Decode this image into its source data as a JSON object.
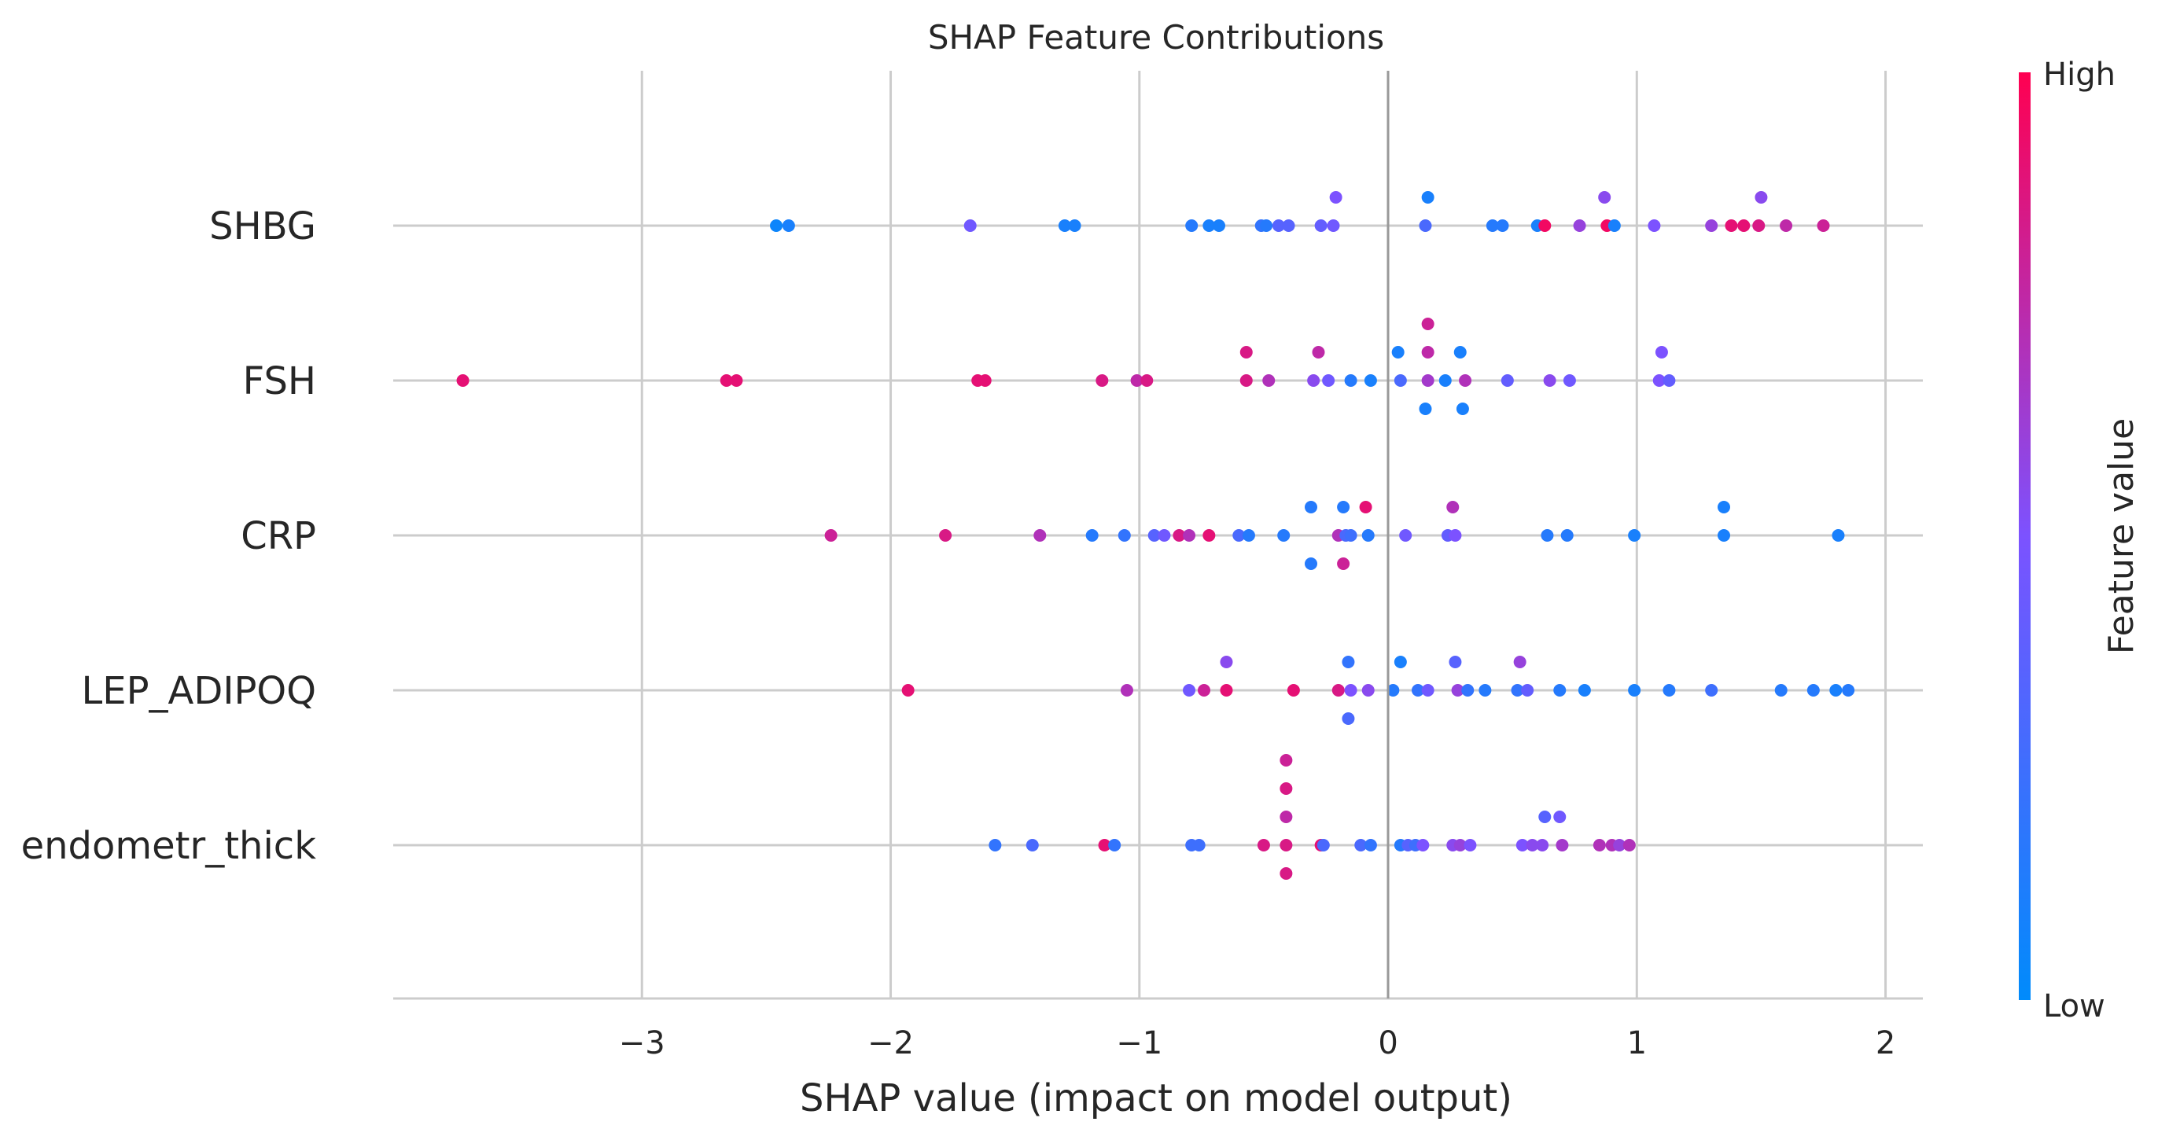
{
  "chart_data": {
    "type": "scatter",
    "title": "SHAP Feature Contributions",
    "xlabel": "SHAP value (impact on model output)",
    "xlim": [
      -4.0,
      2.15
    ],
    "xticks": [
      -3,
      -2,
      -1,
      0,
      1,
      2
    ],
    "xtick_labels": [
      "−3",
      "−2",
      "−1",
      "0",
      "1",
      "2"
    ],
    "grid": true,
    "features": [
      "SHBG",
      "FSH",
      "CRP",
      "LEP_ADIPOQ",
      "endometr_thick"
    ],
    "colorbar": {
      "label": "Feature value",
      "high_label": "High",
      "low_label": "Low",
      "low_color": "#008bfb",
      "mid_color": "#7c52ff",
      "high_color": "#ff0051"
    },
    "series": [
      {
        "feature": "SHBG",
        "points": [
          [
            -2.46,
            0,
            0.05
          ],
          [
            -2.41,
            0,
            0.1
          ],
          [
            -1.68,
            0,
            0.45
          ],
          [
            -1.3,
            0,
            0.1
          ],
          [
            -1.26,
            0,
            0.1
          ],
          [
            -0.79,
            0,
            0.15
          ],
          [
            -0.72,
            0,
            0.1
          ],
          [
            -0.68,
            0,
            0.1
          ],
          [
            -0.51,
            0,
            0.2
          ],
          [
            -0.49,
            0,
            0.15
          ],
          [
            -0.44,
            0,
            0.35
          ],
          [
            -0.4,
            0,
            0.35
          ],
          [
            -0.27,
            0,
            0.4
          ],
          [
            -0.22,
            0,
            0.45
          ],
          [
            -0.21,
            1,
            0.5
          ],
          [
            0.15,
            0,
            0.3
          ],
          [
            0.16,
            1,
            0.1
          ],
          [
            0.42,
            0,
            0.15
          ],
          [
            0.46,
            0,
            0.15
          ],
          [
            0.6,
            0,
            0.1
          ],
          [
            0.63,
            0,
            0.95
          ],
          [
            0.77,
            0,
            0.6
          ],
          [
            0.87,
            1,
            0.55
          ],
          [
            0.88,
            0,
            0.95
          ],
          [
            0.91,
            0,
            0.1
          ],
          [
            1.07,
            0,
            0.5
          ],
          [
            1.3,
            0,
            0.6
          ],
          [
            1.38,
            0,
            0.9
          ],
          [
            1.43,
            0,
            0.9
          ],
          [
            1.49,
            0,
            0.85
          ],
          [
            1.5,
            1,
            0.55
          ],
          [
            1.6,
            0,
            0.75
          ],
          [
            1.75,
            0,
            0.8
          ]
        ]
      },
      {
        "feature": "FSH",
        "points": [
          [
            -3.72,
            0,
            0.9
          ],
          [
            -2.66,
            0,
            0.9
          ],
          [
            -2.62,
            0,
            0.9
          ],
          [
            -1.65,
            0,
            0.9
          ],
          [
            -1.62,
            0,
            0.9
          ],
          [
            -1.15,
            0,
            0.85
          ],
          [
            -1.01,
            0,
            0.75
          ],
          [
            -0.97,
            0,
            0.85
          ],
          [
            -0.57,
            1,
            0.85
          ],
          [
            -0.57,
            0,
            0.85
          ],
          [
            -0.48,
            0,
            0.7
          ],
          [
            -0.3,
            0,
            0.55
          ],
          [
            -0.28,
            1,
            0.75
          ],
          [
            -0.24,
            0,
            0.45
          ],
          [
            -0.15,
            0,
            0.15
          ],
          [
            -0.07,
            0,
            0.1
          ],
          [
            0.04,
            1,
            0.1
          ],
          [
            0.05,
            0,
            0.3
          ],
          [
            0.16,
            2,
            0.8
          ],
          [
            0.16,
            1,
            0.75
          ],
          [
            0.16,
            0,
            0.65
          ],
          [
            0.15,
            -1,
            0.1
          ],
          [
            0.23,
            0,
            0.1
          ],
          [
            0.29,
            1,
            0.1
          ],
          [
            0.31,
            0,
            0.7
          ],
          [
            0.3,
            -1,
            0.1
          ],
          [
            0.48,
            0,
            0.4
          ],
          [
            0.65,
            0,
            0.55
          ],
          [
            0.73,
            0,
            0.45
          ],
          [
            1.1,
            1,
            0.5
          ],
          [
            1.09,
            0,
            0.5
          ],
          [
            1.13,
            0,
            0.4
          ]
        ]
      },
      {
        "feature": "CRP",
        "points": [
          [
            -2.24,
            0,
            0.8
          ],
          [
            -1.78,
            0,
            0.85
          ],
          [
            -1.4,
            0,
            0.7
          ],
          [
            -1.19,
            0,
            0.15
          ],
          [
            -1.06,
            0,
            0.2
          ],
          [
            -0.94,
            0,
            0.35
          ],
          [
            -0.9,
            0,
            0.45
          ],
          [
            -0.84,
            0,
            0.85
          ],
          [
            -0.8,
            0,
            0.7
          ],
          [
            -0.72,
            0,
            0.9
          ],
          [
            -0.6,
            0,
            0.3
          ],
          [
            -0.56,
            0,
            0.15
          ],
          [
            -0.42,
            0,
            0.15
          ],
          [
            -0.31,
            1,
            0.15
          ],
          [
            -0.31,
            -1,
            0.15
          ],
          [
            -0.2,
            0,
            0.7
          ],
          [
            -0.18,
            1,
            0.15
          ],
          [
            -0.17,
            0,
            0.3
          ],
          [
            -0.15,
            0,
            0.25
          ],
          [
            -0.18,
            -1,
            0.8
          ],
          [
            -0.09,
            1,
            0.9
          ],
          [
            -0.08,
            0,
            0.15
          ],
          [
            0.07,
            0,
            0.45
          ],
          [
            0.24,
            0,
            0.4
          ],
          [
            0.26,
            1,
            0.7
          ],
          [
            0.27,
            0,
            0.5
          ],
          [
            0.64,
            0,
            0.15
          ],
          [
            0.72,
            0,
            0.15
          ],
          [
            0.99,
            0,
            0.1
          ],
          [
            1.35,
            1,
            0.1
          ],
          [
            1.35,
            0,
            0.1
          ],
          [
            1.81,
            0,
            0.1
          ]
        ]
      },
      {
        "feature": "LEP_ADIPOQ",
        "points": [
          [
            -1.93,
            0,
            0.9
          ],
          [
            -1.05,
            0,
            0.7
          ],
          [
            -0.8,
            0,
            0.45
          ],
          [
            -0.74,
            0,
            0.8
          ],
          [
            -0.65,
            1,
            0.55
          ],
          [
            -0.65,
            0,
            0.9
          ],
          [
            -0.38,
            0,
            0.9
          ],
          [
            -0.2,
            0,
            0.85
          ],
          [
            -0.16,
            1,
            0.2
          ],
          [
            -0.15,
            0,
            0.5
          ],
          [
            -0.16,
            -1,
            0.3
          ],
          [
            -0.08,
            0,
            0.55
          ],
          [
            0.02,
            0,
            0.15
          ],
          [
            0.05,
            1,
            0.1
          ],
          [
            0.12,
            0,
            0.2
          ],
          [
            0.16,
            0,
            0.45
          ],
          [
            0.27,
            1,
            0.35
          ],
          [
            0.28,
            0,
            0.6
          ],
          [
            0.32,
            0,
            0.2
          ],
          [
            0.39,
            0,
            0.15
          ],
          [
            0.52,
            0,
            0.2
          ],
          [
            0.53,
            1,
            0.6
          ],
          [
            0.56,
            0,
            0.4
          ],
          [
            0.69,
            0,
            0.15
          ],
          [
            0.79,
            0,
            0.1
          ],
          [
            0.99,
            0,
            0.1
          ],
          [
            1.13,
            0,
            0.15
          ],
          [
            1.3,
            0,
            0.25
          ],
          [
            1.58,
            0,
            0.15
          ],
          [
            1.71,
            0,
            0.15
          ],
          [
            1.8,
            0,
            0.1
          ],
          [
            1.85,
            0,
            0.15
          ]
        ]
      },
      {
        "feature": "endometr_thick",
        "points": [
          [
            -1.58,
            0,
            0.2
          ],
          [
            -1.43,
            0,
            0.3
          ],
          [
            -1.14,
            0,
            0.9
          ],
          [
            -1.1,
            0,
            0.2
          ],
          [
            -0.79,
            0,
            0.25
          ],
          [
            -0.76,
            0,
            0.25
          ],
          [
            -0.5,
            0,
            0.85
          ],
          [
            -0.41,
            3,
            0.8
          ],
          [
            -0.41,
            2,
            0.85
          ],
          [
            -0.41,
            1,
            0.75
          ],
          [
            -0.41,
            0,
            0.85
          ],
          [
            -0.41,
            -1,
            0.85
          ],
          [
            -0.27,
            0,
            0.9
          ],
          [
            -0.26,
            0,
            0.3
          ],
          [
            -0.11,
            0,
            0.3
          ],
          [
            -0.07,
            0,
            0.2
          ],
          [
            0.05,
            0,
            0.15
          ],
          [
            0.08,
            0,
            0.35
          ],
          [
            0.11,
            0,
            0.25
          ],
          [
            0.14,
            0,
            0.5
          ],
          [
            0.26,
            0,
            0.55
          ],
          [
            0.29,
            0,
            0.6
          ],
          [
            0.33,
            0,
            0.5
          ],
          [
            0.54,
            0,
            0.5
          ],
          [
            0.58,
            0,
            0.55
          ],
          [
            0.62,
            0,
            0.55
          ],
          [
            0.63,
            1,
            0.35
          ],
          [
            0.69,
            1,
            0.45
          ],
          [
            0.7,
            0,
            0.65
          ],
          [
            0.85,
            0,
            0.7
          ],
          [
            0.9,
            0,
            0.7
          ],
          [
            0.93,
            0,
            0.6
          ],
          [
            0.97,
            0,
            0.7
          ]
        ]
      }
    ]
  }
}
